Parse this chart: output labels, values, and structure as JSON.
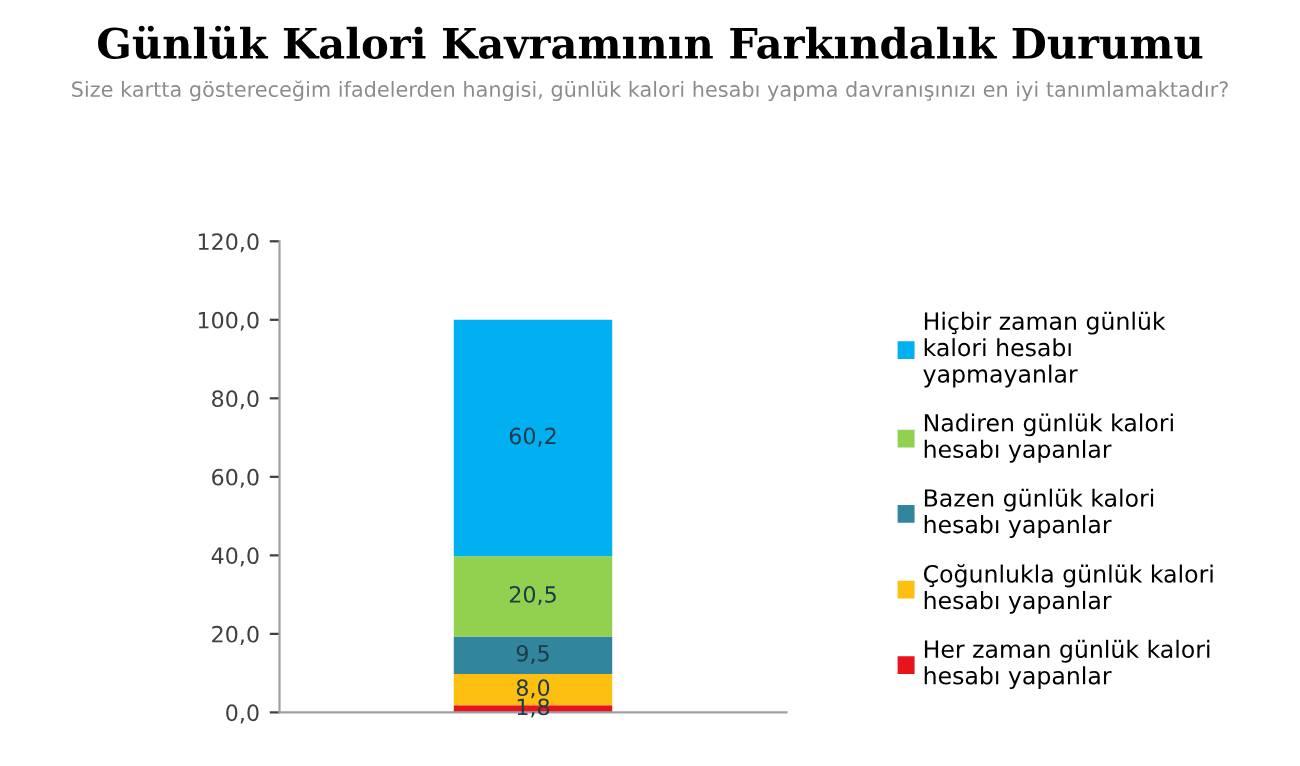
{
  "chart_data": {
    "type": "bar",
    "stacked": true,
    "title": "Günlük Kalori Kavramının Farkındalık Durumu",
    "subtitle": "Size kartta göstereceğim ifadelerden hangisi, günlük kalori hesabı yapma davranışınızı en iyi tanımlamaktadır?",
    "categories": [
      null
    ],
    "series": [
      {
        "name": "Her zaman günlük kalori\nhesabı yapanlar",
        "color": "#e8141b",
        "values": [
          1.8
        ],
        "value_labels": [
          "1,8"
        ]
      },
      {
        "name": "Çoğunlukla günlük kalori\nhesabı yapanlar",
        "color": "#fdc010",
        "values": [
          8.0
        ],
        "value_labels": [
          "8,0"
        ]
      },
      {
        "name": "Bazen günlük kalori\nhesabı yapanlar",
        "color": "#31859c",
        "values": [
          9.5
        ],
        "value_labels": [
          "9,5"
        ]
      },
      {
        "name": "Nadiren günlük kalori\nhesabı yapanlar",
        "color": "#92d050",
        "values": [
          20.5
        ],
        "value_labels": [
          "20,5"
        ]
      },
      {
        "name": "Hiçbir zaman günlük\nkalori hesabı\nyapmayanlar",
        "color": "#00b0f0",
        "values": [
          60.2
        ],
        "value_labels": [
          "60,2"
        ]
      }
    ],
    "ylim": [
      0,
      120
    ],
    "yticks": [
      {
        "value": 0,
        "label": "0,0"
      },
      {
        "value": 20,
        "label": "20,0"
      },
      {
        "value": 40,
        "label": "40,0"
      },
      {
        "value": 60,
        "label": "60,0"
      },
      {
        "value": 80,
        "label": "80,0"
      },
      {
        "value": 100,
        "label": "100,0"
      },
      {
        "value": 120,
        "label": "120,0"
      }
    ],
    "grid": false,
    "legend": "right"
  }
}
